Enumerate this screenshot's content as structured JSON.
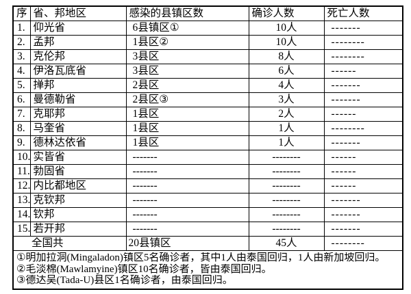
{
  "table": {
    "headers": [
      "序",
      "省、邦地区",
      "感染的县镇区数",
      "确诊人数",
      "死亡人数"
    ],
    "rows": [
      {
        "no": "1.",
        "region": "仰光省",
        "townships": "6县镇区①",
        "confirmed": "10人",
        "deaths": "-------"
      },
      {
        "no": "2.",
        "region": "孟邦",
        "townships": "1县区②",
        "confirmed": "10人",
        "deaths": "--------"
      },
      {
        "no": "3.",
        "region": "克伦邦",
        "townships": "3县区",
        "confirmed": "8人",
        "deaths": "--------"
      },
      {
        "no": "4.",
        "region": "伊洛瓦底省",
        "townships": "3县区",
        "confirmed": "6人",
        "deaths": "------"
      },
      {
        "no": "5.",
        "region": "掸邦",
        "townships": "2县区",
        "confirmed": "4人",
        "deaths": "-------"
      },
      {
        "no": "6.",
        "region": "曼德勒省",
        "townships": "2县区③",
        "confirmed": "3人",
        "deaths": "-------"
      },
      {
        "no": "7.",
        "region": "克耶邦",
        "townships": "1县区",
        "confirmed": "2人",
        "deaths": "------"
      },
      {
        "no": "8.",
        "region": "马奎省",
        "townships": "1县区",
        "confirmed": "1人",
        "deaths": "--------"
      },
      {
        "no": "9.",
        "region": "德林达依省",
        "townships": "1县区",
        "confirmed": "1人",
        "deaths": "-------"
      },
      {
        "no": "10.",
        "region": "实皆省",
        "townships": "-------",
        "confirmed": "--------",
        "deaths": "------"
      },
      {
        "no": "11.",
        "region": "勃固省",
        "townships": "-------",
        "confirmed": "--------",
        "deaths": "------"
      },
      {
        "no": "12.",
        "region": "内比都地区",
        "townships": "-------",
        "confirmed": "--------",
        "deaths": "------"
      },
      {
        "no": "13.",
        "region": "克钦邦",
        "townships": "-------",
        "confirmed": "--------",
        "deaths": "-------"
      },
      {
        "no": "14.",
        "region": "钦邦",
        "townships": "-------",
        "confirmed": "--------",
        "deaths": "-------"
      },
      {
        "no": "15.",
        "region": "若开邦",
        "townships": "-------",
        "confirmed": "--------",
        "deaths": "-------"
      }
    ],
    "total": {
      "label": "全国共",
      "townships": "20县镇区",
      "confirmed": "45人",
      "deaths": "--------"
    }
  },
  "footnotes": [
    "①明加拉洞(Mingaladon)镇区5名确诊者，其中1人由泰国回归，1人由新加坡回归。",
    "②毛淡棉(Mawlamyine)镇区10名确诊者，皆由泰国回归。",
    "③德达吴(Tada-U)县区1名确诊者，由泰国回归。"
  ],
  "colors": {
    "border": "#000000",
    "text": "#000000",
    "background": "#ffffff"
  }
}
